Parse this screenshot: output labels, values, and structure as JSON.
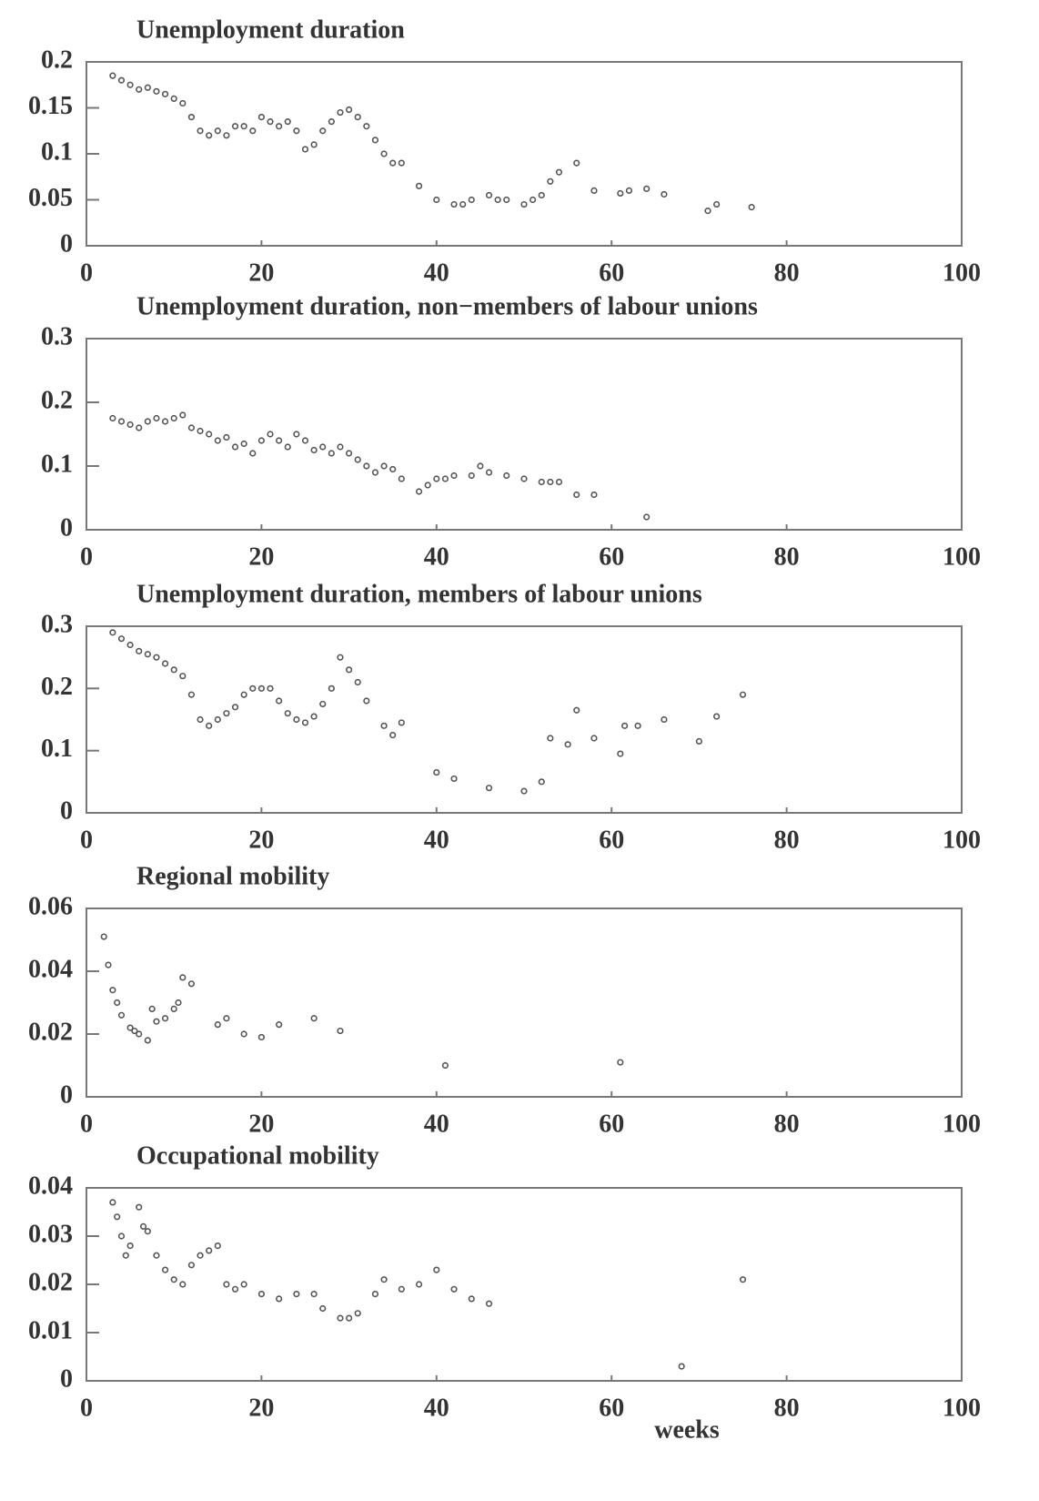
{
  "chart_data": [
    {
      "type": "scatter",
      "title": "Unemployment duration",
      "x": [
        3,
        4,
        5,
        6,
        7,
        8,
        9,
        10,
        11,
        12,
        13,
        14,
        15,
        16,
        17,
        18,
        19,
        20,
        21,
        22,
        23,
        24,
        25,
        26,
        27,
        28,
        29,
        30,
        31,
        32,
        33,
        34,
        35,
        36,
        38,
        40,
        42,
        43,
        44,
        46,
        47,
        48,
        50,
        51,
        52,
        53,
        54,
        56,
        58,
        61,
        62,
        64,
        66,
        71,
        72,
        76
      ],
      "values": [
        0.185,
        0.18,
        0.175,
        0.17,
        0.172,
        0.168,
        0.165,
        0.16,
        0.155,
        0.14,
        0.125,
        0.12,
        0.125,
        0.12,
        0.13,
        0.13,
        0.125,
        0.14,
        0.135,
        0.13,
        0.135,
        0.125,
        0.105,
        0.11,
        0.125,
        0.135,
        0.145,
        0.148,
        0.14,
        0.13,
        0.115,
        0.1,
        0.09,
        0.09,
        0.065,
        0.05,
        0.045,
        0.045,
        0.05,
        0.055,
        0.05,
        0.05,
        0.045,
        0.05,
        0.055,
        0.07,
        0.08,
        0.09,
        0.06,
        0.057,
        0.06,
        0.062,
        0.056,
        0.038,
        0.045,
        0.042
      ],
      "xlim": [
        0,
        100
      ],
      "xticks": [
        0,
        20,
        40,
        60,
        80,
        100
      ],
      "ylim": [
        0,
        0.2
      ],
      "yticks": [
        0,
        0.05,
        0.1,
        0.15,
        0.2
      ],
      "color": "#555555",
      "grid": false
    },
    {
      "type": "scatter",
      "title": "Unemployment duration, non−members of labour unions",
      "x": [
        3,
        4,
        5,
        6,
        7,
        8,
        9,
        10,
        11,
        12,
        13,
        14,
        15,
        16,
        17,
        18,
        19,
        20,
        21,
        22,
        23,
        24,
        25,
        26,
        27,
        28,
        29,
        30,
        31,
        32,
        33,
        34,
        35,
        36,
        38,
        39,
        40,
        41,
        42,
        44,
        45,
        46,
        48,
        50,
        52,
        53,
        54,
        56,
        58,
        64
      ],
      "values": [
        0.175,
        0.17,
        0.165,
        0.16,
        0.17,
        0.175,
        0.17,
        0.175,
        0.18,
        0.16,
        0.155,
        0.15,
        0.14,
        0.145,
        0.13,
        0.135,
        0.12,
        0.14,
        0.15,
        0.14,
        0.13,
        0.15,
        0.14,
        0.125,
        0.13,
        0.12,
        0.13,
        0.12,
        0.11,
        0.1,
        0.09,
        0.1,
        0.095,
        0.08,
        0.06,
        0.07,
        0.08,
        0.08,
        0.085,
        0.085,
        0.1,
        0.09,
        0.085,
        0.08,
        0.075,
        0.075,
        0.075,
        0.055,
        0.055,
        0.02
      ],
      "xlim": [
        0,
        100
      ],
      "xticks": [
        0,
        20,
        40,
        60,
        80,
        100
      ],
      "ylim": [
        0,
        0.3
      ],
      "yticks": [
        0,
        0.1,
        0.2,
        0.3
      ],
      "color": "#555555",
      "grid": false
    },
    {
      "type": "scatter",
      "title": "Unemployment duration, members of labour unions",
      "x": [
        3,
        4,
        5,
        6,
        7,
        8,
        9,
        10,
        11,
        12,
        13,
        14,
        15,
        16,
        17,
        18,
        19,
        20,
        21,
        22,
        23,
        24,
        25,
        26,
        27,
        28,
        29,
        30,
        31,
        32,
        34,
        35,
        36,
        40,
        42,
        46,
        50,
        52,
        53,
        55,
        56,
        58,
        61,
        61.5,
        63,
        66,
        70,
        72,
        75
      ],
      "values": [
        0.29,
        0.28,
        0.27,
        0.26,
        0.255,
        0.25,
        0.24,
        0.23,
        0.22,
        0.19,
        0.15,
        0.14,
        0.15,
        0.16,
        0.17,
        0.19,
        0.2,
        0.2,
        0.2,
        0.18,
        0.16,
        0.15,
        0.145,
        0.155,
        0.175,
        0.2,
        0.25,
        0.23,
        0.21,
        0.18,
        0.14,
        0.125,
        0.145,
        0.065,
        0.055,
        0.04,
        0.035,
        0.05,
        0.12,
        0.11,
        0.165,
        0.12,
        0.095,
        0.14,
        0.14,
        0.15,
        0.115,
        0.155,
        0.19
      ],
      "xlim": [
        0,
        100
      ],
      "xticks": [
        0,
        20,
        40,
        60,
        80,
        100
      ],
      "ylim": [
        0,
        0.3
      ],
      "yticks": [
        0,
        0.1,
        0.2,
        0.3
      ],
      "color": "#555555",
      "grid": false
    },
    {
      "type": "scatter",
      "title": "Regional mobility",
      "x": [
        2,
        2.5,
        3,
        3.5,
        4,
        5,
        5.5,
        6,
        7,
        7.5,
        8,
        9,
        10,
        10.5,
        11,
        12,
        15,
        16,
        18,
        20,
        22,
        26,
        29,
        41,
        61
      ],
      "values": [
        0.051,
        0.042,
        0.034,
        0.03,
        0.026,
        0.022,
        0.021,
        0.02,
        0.018,
        0.028,
        0.024,
        0.025,
        0.028,
        0.03,
        0.038,
        0.036,
        0.023,
        0.025,
        0.02,
        0.019,
        0.023,
        0.025,
        0.021,
        0.01,
        0.011
      ],
      "xlim": [
        0,
        100
      ],
      "xticks": [
        0,
        20,
        40,
        60,
        80,
        100
      ],
      "ylim": [
        0,
        0.06
      ],
      "yticks": [
        0,
        0.02,
        0.04,
        0.06
      ],
      "color": "#555555",
      "grid": false
    },
    {
      "type": "scatter",
      "title": "Occupational mobility",
      "xlabel": "weeks",
      "x": [
        3,
        3.5,
        4,
        4.5,
        5,
        6,
        6.5,
        7,
        8,
        9,
        10,
        11,
        12,
        13,
        14,
        15,
        16,
        17,
        18,
        20,
        22,
        24,
        26,
        27,
        29,
        30,
        31,
        33,
        34,
        36,
        38,
        40,
        42,
        44,
        46,
        68,
        75
      ],
      "values": [
        0.037,
        0.034,
        0.03,
        0.026,
        0.028,
        0.036,
        0.032,
        0.031,
        0.026,
        0.023,
        0.021,
        0.02,
        0.024,
        0.026,
        0.027,
        0.028,
        0.02,
        0.019,
        0.02,
        0.018,
        0.017,
        0.018,
        0.018,
        0.015,
        0.013,
        0.013,
        0.014,
        0.018,
        0.021,
        0.019,
        0.02,
        0.023,
        0.019,
        0.017,
        0.016,
        0.003,
        0.021
      ],
      "xlim": [
        0,
        100
      ],
      "xticks": [
        0,
        20,
        40,
        60,
        80,
        100
      ],
      "ylim": [
        0,
        0.04
      ],
      "yticks": [
        0,
        0.01,
        0.02,
        0.03,
        0.04
      ],
      "color": "#555555",
      "grid": false
    }
  ]
}
